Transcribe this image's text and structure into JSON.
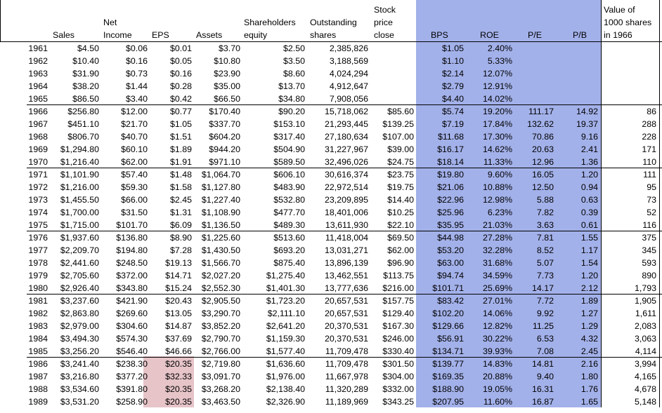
{
  "headers": {
    "sales": [
      "Sales"
    ],
    "net_income": [
      "Net",
      "Income"
    ],
    "eps": [
      "EPS"
    ],
    "assets": [
      "Assets"
    ],
    "equity": [
      "Shareholders",
      "equity"
    ],
    "shares": [
      "Outstanding",
      "shares"
    ],
    "price": [
      "Stock",
      "price",
      "close"
    ],
    "bps": [
      "BPS"
    ],
    "roe": [
      "ROE"
    ],
    "pe": [
      "P/E"
    ],
    "pb": [
      "P/B"
    ],
    "value": [
      "Value of",
      "1000 shares",
      "in 1966"
    ]
  },
  "colors": {
    "bps_band": "#a3b1ea",
    "eps_highlight": "#e6c4c8"
  },
  "rows": [
    [
      "1961",
      "$4.50",
      "$0.06",
      "$0.01",
      "$3.70",
      "$2.50",
      "2,385,826",
      "",
      "$1.05",
      "2.40%",
      "",
      "",
      ""
    ],
    [
      "1962",
      "$10.40",
      "$0.16",
      "$0.05",
      "$10.80",
      "$3.50",
      "3,188,569",
      "",
      "$1.10",
      "5.33%",
      "",
      "",
      ""
    ],
    [
      "1963",
      "$31.90",
      "$0.73",
      "$0.16",
      "$23.90",
      "$8.60",
      "4,024,294",
      "",
      "$2.14",
      "12.07%",
      "",
      "",
      ""
    ],
    [
      "1964",
      "$38.20",
      "$1.44",
      "$0.28",
      "$35.00",
      "$13.70",
      "4,912,647",
      "",
      "$2.79",
      "12.91%",
      "",
      "",
      ""
    ],
    [
      "1965",
      "$86.50",
      "$3.40",
      "$0.42",
      "$66.50",
      "$34.80",
      "7,908,056",
      "",
      "$4.40",
      "14.02%",
      "",
      "",
      ""
    ],
    [
      "1966",
      "$256.80",
      "$12.00",
      "$0.77",
      "$170.40",
      "$90.20",
      "15,718,062",
      "$85.60",
      "$5.74",
      "19.20%",
      "111.17",
      "14.92",
      "86"
    ],
    [
      "1967",
      "$451.10",
      "$21.70",
      "$1.05",
      "$337.70",
      "$153.10",
      "21,293,445",
      "$139.25",
      "$7.19",
      "17.84%",
      "132.62",
      "19.37",
      "288"
    ],
    [
      "1968",
      "$806.70",
      "$40.70",
      "$1.51",
      "$604.20",
      "$317.40",
      "27,180,634",
      "$107.00",
      "$11.68",
      "17.30%",
      "70.86",
      "9.16",
      "228"
    ],
    [
      "1969",
      "$1,294.80",
      "$60.10",
      "$1.89",
      "$944.20",
      "$504.90",
      "31,227,967",
      "$39.00",
      "$16.17",
      "14.62%",
      "20.63",
      "2.41",
      "171"
    ],
    [
      "1970",
      "$1,216.40",
      "$62.00",
      "$1.91",
      "$971.10",
      "$589.50",
      "32,496,026",
      "$24.75",
      "$18.14",
      "11.33%",
      "12.96",
      "1.36",
      "110"
    ],
    [
      "1971",
      "$1,101.90",
      "$57.40",
      "$1.48",
      "$1,064.70",
      "$606.10",
      "30,616,374",
      "$23.75",
      "$19.80",
      "9.60%",
      "16.05",
      "1.20",
      "111"
    ],
    [
      "1972",
      "$1,216.00",
      "$59.30",
      "$1.58",
      "$1,127.80",
      "$483.90",
      "22,972,514",
      "$19.75",
      "$21.06",
      "10.88%",
      "12.50",
      "0.94",
      "95"
    ],
    [
      "1973",
      "$1,455.50",
      "$66.00",
      "$2.45",
      "$1,227.40",
      "$532.80",
      "23,209,895",
      "$14.40",
      "$22.96",
      "12.98%",
      "5.88",
      "0.63",
      "73"
    ],
    [
      "1974",
      "$1,700.00",
      "$31.50",
      "$1.31",
      "$1,108.90",
      "$477.70",
      "18,401,006",
      "$10.25",
      "$25.96",
      "6.23%",
      "7.82",
      "0.39",
      "52"
    ],
    [
      "1975",
      "$1,715.00",
      "$101.70",
      "$6.09",
      "$1,136.50",
      "$489.30",
      "13,611,930",
      "$22.10",
      "$35.95",
      "21.03%",
      "3.63",
      "0.61",
      "116"
    ],
    [
      "1976",
      "$1,937.60",
      "$136.80",
      "$8.90",
      "$1,225.60",
      "$513.60",
      "11,418,004",
      "$69.50",
      "$44.98",
      "27.28%",
      "7.81",
      "1.55",
      "375"
    ],
    [
      "1977",
      "$2,209.70",
      "$194.80",
      "$7.28",
      "$1,430.50",
      "$693.20",
      "13,031,271",
      "$62.00",
      "$53.20",
      "32.28%",
      "8.52",
      "1.17",
      "345"
    ],
    [
      "1978",
      "$2,441.60",
      "$248.50",
      "$19.13",
      "$1,566.70",
      "$875.40",
      "13,896,139",
      "$96.90",
      "$63.00",
      "31.68%",
      "5.07",
      "1.54",
      "593"
    ],
    [
      "1979",
      "$2,705.60",
      "$372.00",
      "$14.71",
      "$2,027.20",
      "$1,275.40",
      "13,462,551",
      "$113.75",
      "$94.74",
      "34.59%",
      "7.73",
      "1.20",
      "890"
    ],
    [
      "1980",
      "$2,926.40",
      "$343.80",
      "$15.24",
      "$2,552.30",
      "$1,401.30",
      "13,777,636",
      "$216.00",
      "$101.71",
      "25.69%",
      "14.17",
      "2.12",
      "1,793"
    ],
    [
      "1981",
      "$3,237.60",
      "$421.90",
      "$20.43",
      "$2,905.50",
      "$1,723.20",
      "20,657,531",
      "$157.75",
      "$83.42",
      "27.01%",
      "7.72",
      "1.89",
      "1,905"
    ],
    [
      "1982",
      "$2,863.80",
      "$269.60",
      "$13.05",
      "$3,290.70",
      "$2,111.10",
      "20,657,531",
      "$129.40",
      "$102.20",
      "14.06%",
      "9.92",
      "1.27",
      "1,611"
    ],
    [
      "1983",
      "$2,979.00",
      "$304.60",
      "$14.87",
      "$3,852.20",
      "$2,641.20",
      "20,370,531",
      "$167.30",
      "$129.66",
      "12.82%",
      "11.25",
      "1.29",
      "2,083"
    ],
    [
      "1984",
      "$3,494.30",
      "$574.30",
      "$37.69",
      "$2,790.70",
      "$1,159.30",
      "20,370,531",
      "$246.00",
      "$56.91",
      "30.22%",
      "6.53",
      "4.32",
      "3,063"
    ],
    [
      "1985",
      "$3,256.20",
      "$546.40",
      "$46.66",
      "$2,766.00",
      "$1,577.40",
      "11,709,478",
      "$330.40",
      "$134.71",
      "39.93%",
      "7.08",
      "2.45",
      "4,114"
    ],
    [
      "1986",
      "$3,241.40",
      "$238.30",
      "$20.35",
      "$2,719.80",
      "$1,636.60",
      "11,709,478",
      "$301.50",
      "$139.77",
      "14.83%",
      "14.81",
      "2.16",
      "3,994"
    ],
    [
      "1987",
      "$3,216.80",
      "$377.20",
      "$32.33",
      "$3,091.70",
      "$1,976.00",
      "11,667,978",
      "$304.00",
      "$169.35",
      "20.88%",
      "9.40",
      "1.80",
      "4,165"
    ],
    [
      "1988",
      "$3,534.60",
      "$391.80",
      "$20.35",
      "$3,268.20",
      "$2,138.40",
      "11,320,289",
      "$332.00",
      "$188.90",
      "19.05%",
      "16.31",
      "1.76",
      "4,678"
    ],
    [
      "1989",
      "$3,531.20",
      "$258.90",
      "$20.35",
      "$3,463.50",
      "$2,326.90",
      "11,189,969",
      "$343.25",
      "$207.95",
      "11.60%",
      "16.87",
      "1.65",
      "5,148"
    ]
  ]
}
